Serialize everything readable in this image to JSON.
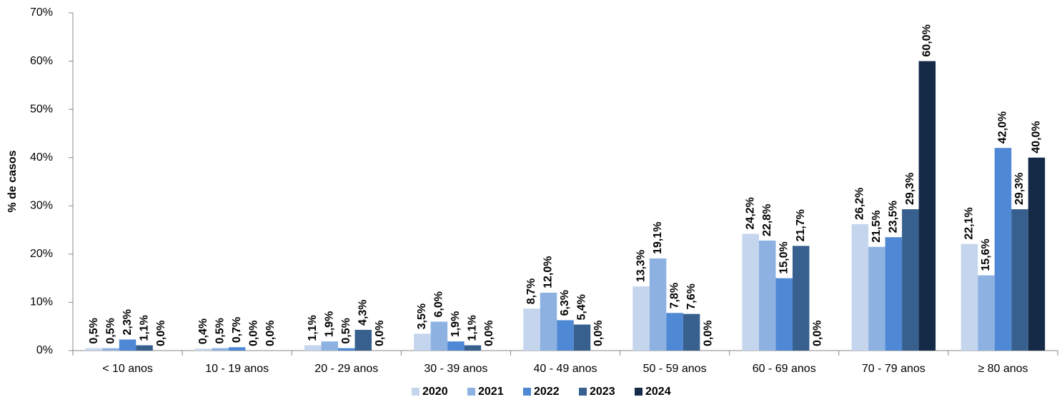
{
  "chart_data": {
    "type": "bar",
    "y_label": "% de casos",
    "categories": [
      "< 10 anos",
      "10 - 19 anos",
      "20 - 29 anos",
      "30 - 39 anos",
      "40 - 49 anos",
      "50 - 59 anos",
      "60 - 69 anos",
      "70 - 79 anos",
      "≥ 80 anos"
    ],
    "series": [
      {
        "name": "2020",
        "color": "#c5d5ee",
        "values": [
          0.5,
          0.4,
          1.1,
          3.5,
          8.7,
          13.3,
          24.2,
          26.2,
          22.1
        ],
        "value_labels": [
          "0,5%",
          "0,4%",
          "1,1%",
          "3,5%",
          "8,7%",
          "13,3%",
          "24,2%",
          "26,2%",
          "22,1%"
        ]
      },
      {
        "name": "2021",
        "color": "#8db2e2",
        "values": [
          0.5,
          0.5,
          1.9,
          6.0,
          12.0,
          19.1,
          22.8,
          21.5,
          15.6
        ],
        "value_labels": [
          "0,5%",
          "0,5%",
          "1,9%",
          "6,0%",
          "12,0%",
          "19,1%",
          "22,8%",
          "21,5%",
          "15,6%"
        ]
      },
      {
        "name": "2022",
        "color": "#4f88d4",
        "values": [
          2.3,
          0.7,
          0.5,
          1.9,
          6.3,
          7.8,
          15.0,
          23.5,
          42.0
        ],
        "value_labels": [
          "2,3%",
          "0,7%",
          "0,5%",
          "1,9%",
          "6,3%",
          "7,8%",
          "15,0%",
          "23,5%",
          "42,0%"
        ]
      },
      {
        "name": "2023",
        "color": "#37608f",
        "values": [
          1.1,
          0.0,
          4.3,
          1.1,
          5.4,
          7.6,
          21.7,
          29.3,
          29.3
        ],
        "value_labels": [
          "1,1%",
          "0,0%",
          "4,3%",
          "1,1%",
          "5,4%",
          "7,6%",
          "21,7%",
          "29,3%",
          "29,3%"
        ]
      },
      {
        "name": "2024",
        "color": "#142a47",
        "values": [
          0.0,
          0.0,
          0.0,
          0.0,
          0.0,
          0.0,
          0.0,
          60.0,
          40.0
        ],
        "value_labels": [
          "0,0%",
          "0,0%",
          "0,0%",
          "0,0%",
          "0,0%",
          "0,0%",
          "0,0%",
          "60,0%",
          "40,0%"
        ]
      }
    ],
    "ylim": [
      0,
      70
    ],
    "yticks": [
      {
        "value": 0,
        "label": "0%"
      },
      {
        "value": 10,
        "label": "10%"
      },
      {
        "value": 20,
        "label": "20%"
      },
      {
        "value": 30,
        "label": "30%"
      },
      {
        "value": 40,
        "label": "40%"
      },
      {
        "value": 50,
        "label": "50%"
      },
      {
        "value": 60,
        "label": "60%"
      },
      {
        "value": 70,
        "label": "70%"
      }
    ],
    "legend": "bottom"
  }
}
